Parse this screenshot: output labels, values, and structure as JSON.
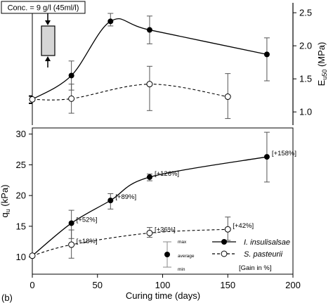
{
  "panel_label": "(b)",
  "inset": {
    "conc_label": "Conc. = 9 g/l (45ml/l)"
  },
  "chart_data": [
    {
      "type": "line",
      "ylabel": "E",
      "ylabel_sub": "u50",
      "ylabel_unit": " (MPa)",
      "xlim": [
        0,
        200
      ],
      "ylim": [
        0.8,
        2.65
      ],
      "yticks": [
        1.0,
        1.5,
        2.0,
        2.5
      ],
      "ytick_labels": [
        "1.0",
        "1.5",
        "2.0",
        "2.5"
      ],
      "series": [
        {
          "marker": "filled",
          "line": "solid",
          "x": [
            0,
            30,
            60,
            90,
            180
          ],
          "y": [
            1.19,
            1.55,
            2.37,
            2.24,
            1.87
          ],
          "err_hi": [
            1.24,
            1.77,
            2.49,
            2.45,
            2.12
          ],
          "err_lo": [
            1.13,
            1.33,
            2.3,
            2.03,
            1.47
          ]
        },
        {
          "marker": "open",
          "line": "dashed",
          "x": [
            0,
            30,
            90,
            150
          ],
          "y": [
            1.19,
            1.2,
            1.42,
            1.23
          ],
          "err_hi": [
            1.24,
            1.42,
            1.69,
            1.58
          ],
          "err_lo": [
            1.13,
            0.98,
            1.02,
            0.9
          ]
        }
      ]
    },
    {
      "type": "line",
      "xlabel": "Curing time (days)",
      "ylabel": "q",
      "ylabel_sub": "u",
      "ylabel_unit": " (kPa)",
      "xlim": [
        0,
        200
      ],
      "ylim": [
        7.2,
        31
      ],
      "xticks": [
        0,
        50,
        100,
        150,
        200
      ],
      "xtick_labels": [
        "0",
        "50",
        "100",
        "150",
        "200"
      ],
      "yticks": [
        10,
        15,
        20,
        25,
        30
      ],
      "ytick_labels": [
        "10",
        "15",
        "20",
        "25",
        "30"
      ],
      "series": [
        {
          "name": "I. insulisalsae",
          "marker": "filled",
          "line": "solid",
          "x": [
            0,
            30,
            60,
            90,
            180
          ],
          "y": [
            10.2,
            15.5,
            19.2,
            23.0,
            26.3
          ],
          "err_hi": [
            12.0,
            17.6,
            20.3,
            23.5,
            30.3
          ],
          "err_lo": [
            9.3,
            13.0,
            17.8,
            22.4,
            22.2
          ],
          "gain_labels": [
            "",
            "[+52%]",
            "[+89%]",
            "[+126%]",
            "[+158%]"
          ]
        },
        {
          "name": "S. pasteurii",
          "marker": "open",
          "line": "dashed",
          "x": [
            0,
            30,
            90,
            150
          ],
          "y": [
            10.2,
            12.0,
            13.9,
            14.5
          ],
          "err_hi": [
            11.0,
            14.4,
            14.8,
            16.5
          ],
          "err_lo": [
            9.4,
            9.8,
            13.2,
            12.7
          ],
          "gain_labels": [
            "",
            "[+18%]",
            "[+36%]",
            "[+42%]"
          ]
        }
      ],
      "errorbar_key": {
        "max": "max",
        "avg": "average",
        "min": "min"
      },
      "gain_note": "[Gain in %]"
    }
  ]
}
